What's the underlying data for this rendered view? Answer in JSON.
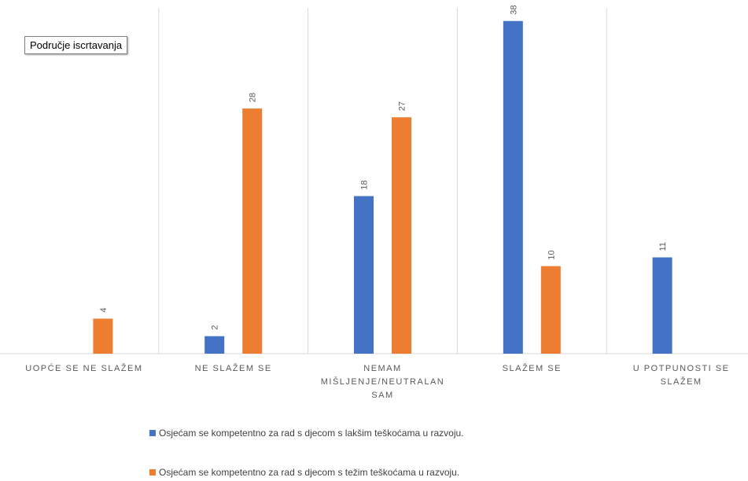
{
  "tooltip": "Područje iscrtavanja",
  "chart_data": {
    "type": "bar",
    "categories": [
      "UOPĆE SE NE SLAŽEM",
      "NE SLAŽEM SE",
      "NEMAM MIŠLJENJE/NEUTRALAN SAM",
      "SLAŽEM SE",
      "U POTPUNOSTI SE SLAŽEM"
    ],
    "category_label_lines": [
      [
        "UOPĆE SE NE SLAŽEM"
      ],
      [
        "NE SLAŽEM SE"
      ],
      [
        "NEMAM",
        "MIŠLJENJE/NEUTRALAN",
        "SAM"
      ],
      [
        "SLAŽEM SE"
      ],
      [
        "U POTPUNOSTI SE",
        "SLAŽEM"
      ]
    ],
    "series": [
      {
        "name": "Osjećam se kompetentno za rad s djecom s lakšim teškoćama u razvoju.",
        "values": [
          null,
          2,
          18,
          38,
          11
        ],
        "color": "#4472C4"
      },
      {
        "name": "Osjećam se kompetentno za rad s djecom s težim teškoćama u razvoju.",
        "values": [
          4,
          28,
          27,
          10,
          null
        ],
        "color": "#ED7D31"
      }
    ],
    "ylim": [
      0,
      39.5
    ],
    "data_labels": true,
    "vertical_gridlines": true,
    "legend_position": "bottom"
  },
  "legend": [
    {
      "label": "Osjećam se kompetentno za rad s djecom s lakšim teškoćama u razvoju.",
      "color": "#4472C4"
    },
    {
      "label": "Osjećam se kompetentno za rad s djecom s težim teškoćama u razvoju.",
      "color": "#ED7D31"
    }
  ]
}
